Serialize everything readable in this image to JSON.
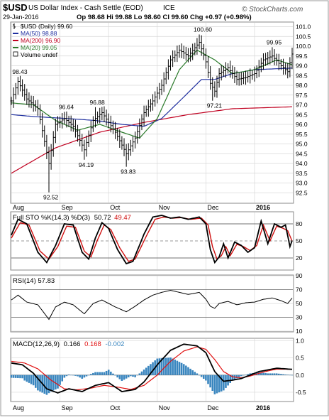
{
  "header": {
    "symbol": "$USD",
    "description": "US Dollar Index - Cash Settle (EOD)",
    "exchange": "ICE",
    "date": "29-Jan-2016",
    "quote_line": "Op 98.68 Hi 99.88 Lo 98.60 Cl 99.60 Chg +0.97 (+0.98%)",
    "watermark": "© StockCharts.com"
  },
  "colors": {
    "price": "#000000",
    "ma50": "#1f2f9f",
    "ma200": "#c00020",
    "ma20": "#2a7a2a",
    "stoK": "#000000",
    "stoD": "#d01010",
    "rsi": "#000000",
    "macd": "#000000",
    "signal": "#e01010",
    "hist": "#3a86bf",
    "grid": "#d8d8d8"
  },
  "chart_data": [
    {
      "type": "line",
      "panel": "price",
      "legend": [
        {
          "label": "$USD (Daily) 99.60",
          "icon": "ohlc-icon"
        },
        {
          "label": "MA(50) 98.88",
          "icon": "line-icon",
          "color": "#1f2f9f"
        },
        {
          "label": "MA(200) 96.90",
          "icon": "line-icon",
          "color": "#c00020"
        },
        {
          "label": "MA(20) 99.05",
          "icon": "line-icon",
          "color": "#2a7a2a"
        },
        {
          "label": "Volume undef",
          "icon": "box-icon"
        }
      ],
      "x_ticks": [
        "Aug",
        "Sep",
        "Oct",
        "Nov",
        "Dec",
        "2016"
      ],
      "x_tick_index": [
        0,
        22,
        44,
        66,
        88,
        110
      ],
      "x_count": 128,
      "ylim": [
        92.0,
        101.2
      ],
      "y_ticks": [
        92.5,
        93.0,
        93.5,
        94.0,
        94.5,
        95.0,
        95.5,
        96.0,
        96.5,
        97.0,
        97.5,
        98.0,
        98.5,
        99.0,
        99.5,
        100.0,
        100.5,
        101.0
      ],
      "annotations": [
        {
          "text": "98.43",
          "i": 3,
          "y": 98.43
        },
        {
          "text": "92.52",
          "i": 17,
          "y": 92.52
        },
        {
          "text": "96.64",
          "i": 24,
          "y": 96.64
        },
        {
          "text": "94.19",
          "i": 33,
          "y": 94.19
        },
        {
          "text": "96.88",
          "i": 38,
          "y": 96.88
        },
        {
          "text": "93.83",
          "i": 52,
          "y": 93.83
        },
        {
          "text": "100.60",
          "i": 85,
          "y": 100.6
        },
        {
          "text": "97.21",
          "i": 91,
          "y": 97.21
        },
        {
          "text": "99.95",
          "i": 118,
          "y": 99.95
        }
      ],
      "close_anchors": [
        [
          0,
          97.2
        ],
        [
          3,
          98.2
        ],
        [
          7,
          97.3
        ],
        [
          12,
          96.8
        ],
        [
          17,
          94.0
        ],
        [
          20,
          96.0
        ],
        [
          24,
          96.3
        ],
        [
          28,
          95.9
        ],
        [
          33,
          94.7
        ],
        [
          37,
          96.2
        ],
        [
          41,
          96.6
        ],
        [
          47,
          95.6
        ],
        [
          52,
          94.5
        ],
        [
          56,
          95.3
        ],
        [
          60,
          96.6
        ],
        [
          64,
          97.2
        ],
        [
          68,
          98.0
        ],
        [
          72,
          99.3
        ],
        [
          76,
          99.8
        ],
        [
          80,
          99.5
        ],
        [
          85,
          100.2
        ],
        [
          88,
          99.2
        ],
        [
          90,
          98.1
        ],
        [
          92,
          97.7
        ],
        [
          94,
          98.6
        ],
        [
          98,
          98.9
        ],
        [
          102,
          98.3
        ],
        [
          106,
          98.4
        ],
        [
          110,
          98.6
        ],
        [
          114,
          99.3
        ],
        [
          118,
          99.5
        ],
        [
          122,
          99.0
        ],
        [
          125,
          98.7
        ],
        [
          127,
          99.6
        ]
      ],
      "ma50_anchors": [
        [
          0,
          96.5
        ],
        [
          10,
          96.4
        ],
        [
          25,
          96.3
        ],
        [
          38,
          96.2
        ],
        [
          50,
          96.0
        ],
        [
          60,
          95.9
        ],
        [
          68,
          96.3
        ],
        [
          78,
          97.4
        ],
        [
          86,
          98.3
        ],
        [
          92,
          98.3
        ],
        [
          100,
          98.6
        ],
        [
          110,
          98.8
        ],
        [
          127,
          98.88
        ]
      ],
      "ma200_anchors": [
        [
          0,
          93.5
        ],
        [
          20,
          94.8
        ],
        [
          40,
          95.6
        ],
        [
          60,
          96.1
        ],
        [
          80,
          96.5
        ],
        [
          100,
          96.8
        ],
        [
          127,
          96.9
        ]
      ],
      "ma20_anchors": [
        [
          0,
          97.1
        ],
        [
          10,
          97.0
        ],
        [
          20,
          96.2
        ],
        [
          30,
          95.7
        ],
        [
          40,
          96.0
        ],
        [
          50,
          95.6
        ],
        [
          58,
          95.3
        ],
        [
          66,
          96.3
        ],
        [
          76,
          98.8
        ],
        [
          84,
          99.8
        ],
        [
          92,
          99.3
        ],
        [
          100,
          98.6
        ],
        [
          110,
          98.8
        ],
        [
          120,
          99.3
        ],
        [
          127,
          99.05
        ]
      ]
    },
    {
      "type": "line",
      "panel": "stochastic",
      "legend_prefix": "Full STO %K(14,3) %D(3)",
      "k_value": "50.72",
      "d_value": "49.47",
      "ylim": [
        0,
        100
      ],
      "y_ticks": [
        20,
        50,
        80
      ],
      "k_anchors": [
        [
          0,
          60
        ],
        [
          3,
          88
        ],
        [
          7,
          80
        ],
        [
          12,
          30
        ],
        [
          16,
          12
        ],
        [
          20,
          42
        ],
        [
          24,
          80
        ],
        [
          28,
          78
        ],
        [
          32,
          30
        ],
        [
          35,
          18
        ],
        [
          38,
          55
        ],
        [
          41,
          82
        ],
        [
          44,
          72
        ],
        [
          48,
          35
        ],
        [
          52,
          10
        ],
        [
          55,
          14
        ],
        [
          60,
          62
        ],
        [
          64,
          92
        ],
        [
          68,
          95
        ],
        [
          72,
          90
        ],
        [
          76,
          92
        ],
        [
          80,
          88
        ],
        [
          85,
          92
        ],
        [
          88,
          80
        ],
        [
          90,
          35
        ],
        [
          92,
          12
        ],
        [
          94,
          22
        ],
        [
          96,
          45
        ],
        [
          98,
          20
        ],
        [
          101,
          48
        ],
        [
          104,
          42
        ],
        [
          107,
          30
        ],
        [
          110,
          38
        ],
        [
          113,
          85
        ],
        [
          116,
          45
        ],
        [
          119,
          80
        ],
        [
          122,
          74
        ],
        [
          124,
          78
        ],
        [
          126,
          40
        ],
        [
          127,
          50.72
        ]
      ],
      "d_anchors": [
        [
          0,
          55
        ],
        [
          4,
          82
        ],
        [
          8,
          78
        ],
        [
          13,
          32
        ],
        [
          17,
          18
        ],
        [
          21,
          40
        ],
        [
          25,
          76
        ],
        [
          29,
          74
        ],
        [
          33,
          32
        ],
        [
          36,
          22
        ],
        [
          39,
          52
        ],
        [
          42,
          78
        ],
        [
          45,
          70
        ],
        [
          49,
          38
        ],
        [
          53,
          14
        ],
        [
          56,
          18
        ],
        [
          61,
          58
        ],
        [
          65,
          88
        ],
        [
          69,
          92
        ],
        [
          73,
          90
        ],
        [
          77,
          91
        ],
        [
          81,
          88
        ],
        [
          86,
          90
        ],
        [
          89,
          78
        ],
        [
          91,
          40
        ],
        [
          93,
          18
        ],
        [
          95,
          24
        ],
        [
          97,
          40
        ],
        [
          99,
          24
        ],
        [
          102,
          44
        ],
        [
          105,
          40
        ],
        [
          108,
          33
        ],
        [
          111,
          42
        ],
        [
          114,
          78
        ],
        [
          117,
          50
        ],
        [
          120,
          76
        ],
        [
          123,
          72
        ],
        [
          125,
          68
        ],
        [
          127,
          49.47
        ]
      ]
    },
    {
      "type": "line",
      "panel": "rsi",
      "legend": "RSI(14) 57.83",
      "ylim": [
        10,
        90
      ],
      "y_ticks": [
        10,
        30,
        50,
        70,
        90
      ],
      "anchors": [
        [
          0,
          55
        ],
        [
          3,
          62
        ],
        [
          7,
          52
        ],
        [
          12,
          48
        ],
        [
          17,
          27
        ],
        [
          20,
          45
        ],
        [
          24,
          52
        ],
        [
          28,
          48
        ],
        [
          33,
          35
        ],
        [
          37,
          50
        ],
        [
          41,
          55
        ],
        [
          47,
          45
        ],
        [
          52,
          38
        ],
        [
          56,
          46
        ],
        [
          60,
          55
        ],
        [
          64,
          62
        ],
        [
          68,
          66
        ],
        [
          72,
          69
        ],
        [
          76,
          66
        ],
        [
          80,
          63
        ],
        [
          85,
          66
        ],
        [
          88,
          56
        ],
        [
          90,
          46
        ],
        [
          92,
          43
        ],
        [
          94,
          50
        ],
        [
          98,
          53
        ],
        [
          102,
          48
        ],
        [
          106,
          51
        ],
        [
          110,
          52
        ],
        [
          114,
          56
        ],
        [
          118,
          58
        ],
        [
          122,
          54
        ],
        [
          125,
          50
        ],
        [
          127,
          57.83
        ]
      ]
    },
    {
      "type": "bar",
      "panel": "macd",
      "legend_prefix": "MACD(12,26,9)",
      "macd_value": "0.166",
      "signal_value": "0.168",
      "hist_value": "-0.002",
      "ylim": [
        -0.75,
        1.05
      ],
      "y_ticks": [
        -0.5,
        0.0,
        0.5,
        1.0
      ],
      "macd_anchors": [
        [
          0,
          0.35
        ],
        [
          5,
          0.3
        ],
        [
          10,
          0.05
        ],
        [
          16,
          -0.4
        ],
        [
          21,
          -0.52
        ],
        [
          26,
          -0.4
        ],
        [
          32,
          -0.48
        ],
        [
          38,
          -0.3
        ],
        [
          44,
          -0.22
        ],
        [
          50,
          -0.48
        ],
        [
          56,
          -0.42
        ],
        [
          60,
          -0.2
        ],
        [
          66,
          0.3
        ],
        [
          72,
          0.72
        ],
        [
          78,
          0.9
        ],
        [
          84,
          0.85
        ],
        [
          88,
          0.65
        ],
        [
          92,
          0.1
        ],
        [
          96,
          -0.18
        ],
        [
          100,
          -0.15
        ],
        [
          104,
          -0.1
        ],
        [
          108,
          0.0
        ],
        [
          112,
          0.1
        ],
        [
          116,
          0.15
        ],
        [
          120,
          0.2
        ],
        [
          124,
          0.18
        ],
        [
          127,
          0.166
        ]
      ],
      "signal_anchors": [
        [
          0,
          0.4
        ],
        [
          6,
          0.35
        ],
        [
          12,
          0.18
        ],
        [
          18,
          -0.15
        ],
        [
          24,
          -0.4
        ],
        [
          30,
          -0.43
        ],
        [
          36,
          -0.38
        ],
        [
          42,
          -0.3
        ],
        [
          48,
          -0.35
        ],
        [
          54,
          -0.42
        ],
        [
          60,
          -0.3
        ],
        [
          66,
          0.0
        ],
        [
          72,
          0.4
        ],
        [
          78,
          0.7
        ],
        [
          84,
          0.82
        ],
        [
          88,
          0.75
        ],
        [
          92,
          0.45
        ],
        [
          96,
          0.1
        ],
        [
          100,
          -0.05
        ],
        [
          104,
          -0.08
        ],
        [
          108,
          -0.03
        ],
        [
          112,
          0.05
        ],
        [
          116,
          0.12
        ],
        [
          120,
          0.17
        ],
        [
          124,
          0.17
        ],
        [
          127,
          0.168
        ]
      ]
    }
  ]
}
